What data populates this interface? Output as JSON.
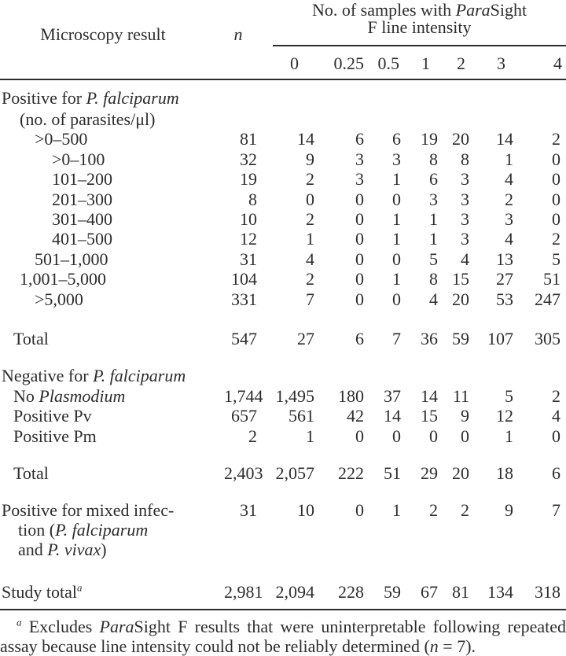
{
  "header": {
    "microscopy_label": "Microscopy result",
    "n_label": "n",
    "group_title_lines": [
      [
        [
          "No. of samples with ",
          0
        ],
        [
          "Para",
          1
        ],
        [
          "Sight",
          0
        ]
      ],
      [
        [
          "F line intensity",
          0
        ]
      ]
    ],
    "intensity_levels": [
      "0",
      "0.25",
      "0.5",
      "1",
      "2",
      "3",
      "4"
    ]
  },
  "rows": [
    {
      "gap_before": "g9",
      "tall": true,
      "level": 0,
      "lines": [
        [
          [
            "Positive for ",
            0
          ],
          [
            "P. falciparum",
            1
          ]
        ]
      ],
      "values": [
        "",
        "",
        "",
        "",
        "",
        "",
        "",
        ""
      ]
    },
    {
      "level": 2,
      "lines": [
        [
          [
            "(no. of parasites/μl)",
            0
          ]
        ]
      ],
      "values": [
        "",
        "",
        "",
        "",
        "",
        "",
        "",
        ""
      ]
    },
    {
      "level": 3,
      "lines": [
        [
          [
            ">0–500",
            0
          ]
        ]
      ],
      "values": [
        "81",
        "14",
        "6",
        "6",
        "19",
        "20",
        "14",
        "2"
      ]
    },
    {
      "level": 4,
      "lines": [
        [
          [
            ">0–100",
            0
          ]
        ]
      ],
      "values": [
        "32",
        "9",
        "3",
        "3",
        "8",
        "8",
        "1",
        "0"
      ]
    },
    {
      "level": 4,
      "lines": [
        [
          [
            "101–200",
            0
          ]
        ]
      ],
      "values": [
        "19",
        "2",
        "3",
        "1",
        "6",
        "3",
        "4",
        "0"
      ]
    },
    {
      "level": 4,
      "lines": [
        [
          [
            "201–300",
            0
          ]
        ]
      ],
      "values": [
        "8",
        "0",
        "0",
        "0",
        "3",
        "3",
        "2",
        "0"
      ]
    },
    {
      "level": 4,
      "lines": [
        [
          [
            "301–400",
            0
          ]
        ]
      ],
      "values": [
        "10",
        "2",
        "0",
        "1",
        "1",
        "3",
        "3",
        "0"
      ]
    },
    {
      "level": 4,
      "lines": [
        [
          [
            "401–500",
            0
          ]
        ]
      ],
      "values": [
        "12",
        "1",
        "0",
        "1",
        "1",
        "3",
        "4",
        "2"
      ]
    },
    {
      "level": 3,
      "lines": [
        [
          [
            "501–1,000",
            0
          ]
        ]
      ],
      "values": [
        "31",
        "4",
        "0",
        "0",
        "5",
        "4",
        "13",
        "5"
      ]
    },
    {
      "level": 2,
      "lines": [
        [
          [
            "1,001–5,000",
            0
          ]
        ]
      ],
      "values": [
        "104",
        "2",
        "0",
        "1",
        "8",
        "15",
        "27",
        "51"
      ]
    },
    {
      "level": 3,
      "lines": [
        [
          [
            ">5,000",
            0
          ]
        ]
      ],
      "values": [
        "331",
        "7",
        "0",
        "0",
        "4",
        "20",
        "53",
        "247"
      ]
    },
    {
      "gap_before": "g25",
      "level": 1,
      "lines": [
        [
          [
            "Total",
            0
          ]
        ]
      ],
      "values": [
        "547",
        "27",
        "6",
        "7",
        "36",
        "59",
        "107",
        "305"
      ]
    },
    {
      "gap_before": "g22",
      "level": 0,
      "lines": [
        [
          [
            "Negative for ",
            0
          ],
          [
            "P. falciparum",
            1
          ]
        ]
      ],
      "values": [
        "",
        "",
        "",
        "",
        "",
        "",
        "",
        ""
      ]
    },
    {
      "level": 1,
      "lines": [
        [
          [
            "No ",
            0
          ],
          [
            "Plasmodium",
            1
          ]
        ]
      ],
      "values": [
        "1,744",
        "1,495",
        "180",
        "37",
        "14",
        "11",
        "5",
        "2"
      ]
    },
    {
      "level": 1,
      "lines": [
        [
          [
            "Positive Pv",
            0
          ]
        ]
      ],
      "values": [
        "657",
        "561",
        "42",
        "14",
        "15",
        "9",
        "12",
        "4"
      ]
    },
    {
      "level": 1,
      "lines": [
        [
          [
            "Positive Pm",
            0
          ]
        ]
      ],
      "values": [
        "2",
        "1",
        "0",
        "0",
        "0",
        "0",
        "1",
        "0"
      ]
    },
    {
      "gap_before": "g22",
      "level": 1,
      "lines": [
        [
          [
            "Total",
            0
          ]
        ]
      ],
      "values": [
        "2,403",
        "2,057",
        "222",
        "51",
        "29",
        "20",
        "18",
        "6"
      ]
    },
    {
      "gap_before": "g21",
      "level": 0,
      "align_top": true,
      "lines": [
        [
          [
            "Positive for mixed infec-",
            0
          ]
        ],
        [
          [
            "tion (",
            0
          ],
          [
            "P. falciparum",
            1
          ]
        ],
        [
          [
            "and ",
            0
          ],
          [
            "P. vivax",
            1
          ],
          [
            ")",
            0
          ]
        ]
      ],
      "values": [
        "31",
        "10",
        "0",
        "1",
        "2",
        "2",
        "9",
        "7"
      ]
    },
    {
      "gap_before": "g28",
      "level": 0,
      "lines": [
        [
          [
            "Study total",
            0
          ],
          [
            "a",
            2
          ]
        ]
      ],
      "values": [
        "2,981",
        "2,094",
        "228",
        "59",
        "67",
        "81",
        "134",
        "318"
      ]
    }
  ],
  "footnote_lines": [
    [
      [
        "a",
        2
      ],
      [
        " Excludes ",
        0
      ],
      [
        "Para",
        1
      ],
      [
        "Sight F results that were uninterpretable following repeated",
        0
      ]
    ],
    [
      [
        "assay because line intensity could not be reliably determined (",
        0
      ],
      [
        "n",
        1
      ],
      [
        " = 7).",
        0
      ]
    ]
  ]
}
